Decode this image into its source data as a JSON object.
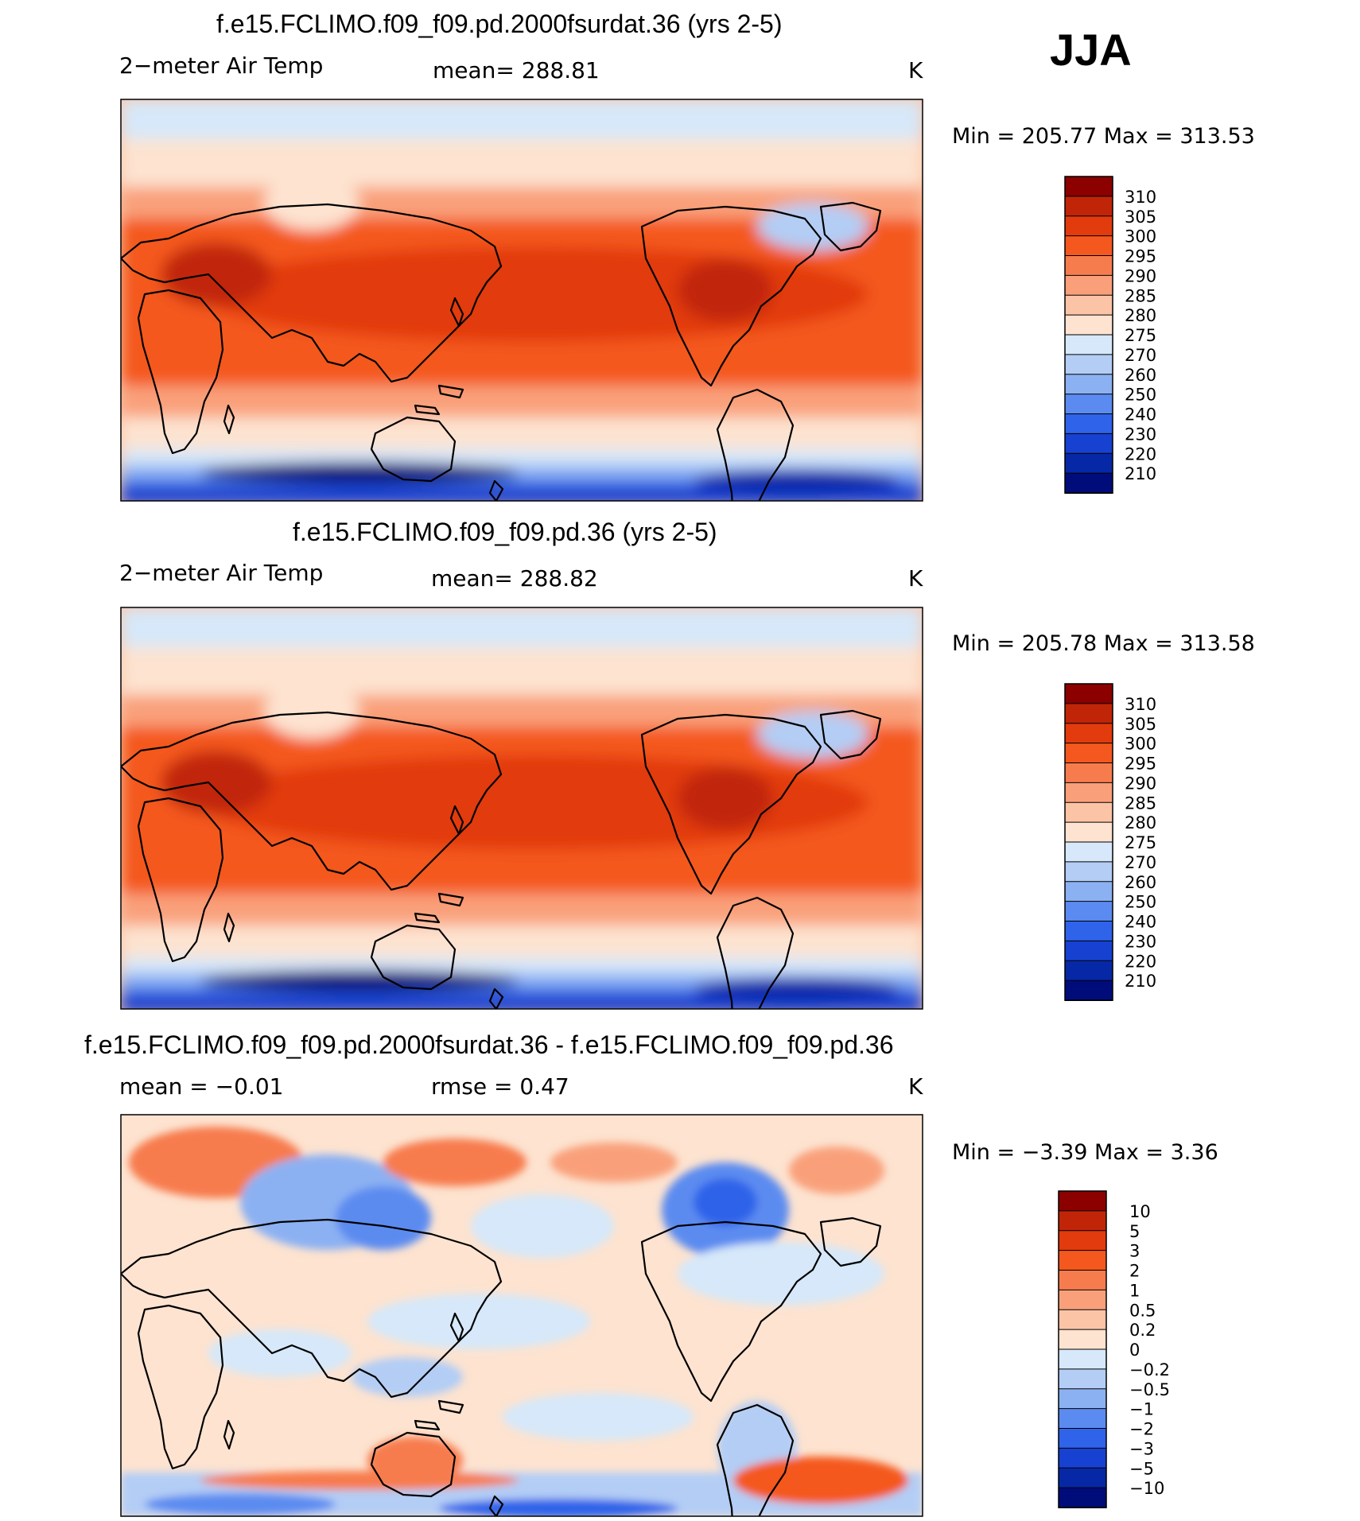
{
  "season": "JJA",
  "panels": [
    {
      "title": "f.e15.FCLIMO.f09_f09.pd.2000fsurdat.36 (yrs 2-5)",
      "left_label": "2−meter Air Temp",
      "center_label": "mean=  288.81",
      "units": "K",
      "minmax": "Min  =  205.77  Max  =  313.53"
    },
    {
      "title": "f.e15.FCLIMO.f09_f09.pd.36 (yrs 2-5)",
      "left_label": "2−meter Air Temp",
      "center_label": "mean=  288.82",
      "units": "K",
      "minmax": "Min  =  205.78  Max  =  313.58"
    },
    {
      "title": "f.e15.FCLIMO.f09_f09.pd.2000fsurdat.36 - f.e15.FCLIMO.f09_f09.pd.36",
      "left_label": "mean  =    −0.01",
      "center_label": "rmse  =      0.47",
      "units": "K",
      "minmax": "Min  =    −3.39  Max  =      3.36"
    }
  ],
  "chart_data": [
    {
      "type": "heatmap",
      "title": "f.e15.FCLIMO.f09_f09.pd.2000fsurdat.36 (yrs 2-5)",
      "variable": "2-meter Air Temp",
      "units": "K",
      "mean": 288.81,
      "min": 205.77,
      "max": 313.53,
      "colorbar_labels": [
        "310",
        "305",
        "300",
        "295",
        "290",
        "285",
        "280",
        "275",
        "270",
        "260",
        "250",
        "240",
        "230",
        "220",
        "210"
      ],
      "colorbar_colors": [
        "#8c0000",
        "#c12508",
        "#e23b0d",
        "#f4581f",
        "#f77c4d",
        "#f9a07a",
        "#fcc4a6",
        "#fde3d0",
        "#d6e8f9",
        "#b3cdf5",
        "#8cb1f2",
        "#5b8bf0",
        "#2f63e9",
        "#1741d1",
        "#0728a6",
        "#000c7a"
      ]
    },
    {
      "type": "heatmap",
      "title": "f.e15.FCLIMO.f09_f09.pd.36 (yrs 2-5)",
      "variable": "2-meter Air Temp",
      "units": "K",
      "mean": 288.82,
      "min": 205.78,
      "max": 313.58,
      "colorbar_labels": [
        "310",
        "305",
        "300",
        "295",
        "290",
        "285",
        "280",
        "275",
        "270",
        "260",
        "250",
        "240",
        "230",
        "220",
        "210"
      ],
      "colorbar_colors": [
        "#8c0000",
        "#c12508",
        "#e23b0d",
        "#f4581f",
        "#f77c4d",
        "#f9a07a",
        "#fcc4a6",
        "#fde3d0",
        "#d6e8f9",
        "#b3cdf5",
        "#8cb1f2",
        "#5b8bf0",
        "#2f63e9",
        "#1741d1",
        "#0728a6",
        "#000c7a"
      ]
    },
    {
      "type": "heatmap",
      "title": "f.e15.FCLIMO.f09_f09.pd.2000fsurdat.36 - f.e15.FCLIMO.f09_f09.pd.36",
      "units": "K",
      "mean": -0.01,
      "rmse": 0.47,
      "min": -3.39,
      "max": 3.36,
      "colorbar_labels": [
        "10",
        "5",
        "3",
        "2",
        "1",
        "0.5",
        "0.2",
        "0",
        "−0.2",
        "−0.5",
        "−1",
        "−2",
        "−3",
        "−5",
        "−10"
      ],
      "colorbar_colors": [
        "#8c0000",
        "#c12508",
        "#e23b0d",
        "#f4581f",
        "#f77c4d",
        "#f9a07a",
        "#fcc4a6",
        "#fde3d0",
        "#d6e8f9",
        "#b3cdf5",
        "#8cb1f2",
        "#5b8bf0",
        "#2f63e9",
        "#1741d1",
        "#0728a6",
        "#000c7a"
      ]
    }
  ]
}
